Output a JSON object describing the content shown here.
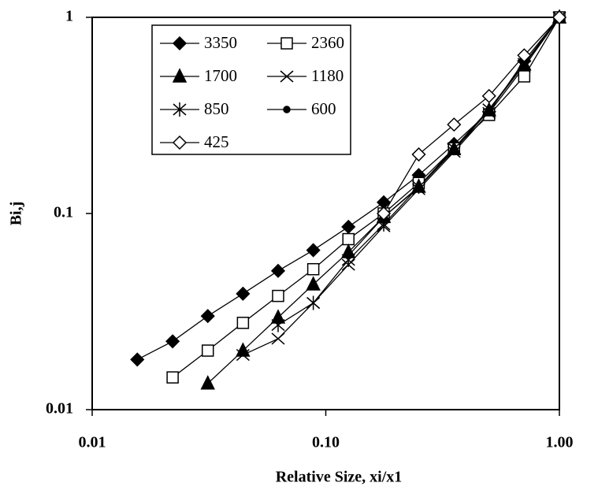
{
  "chart_data": {
    "type": "line",
    "x_label": "Relative Size, xi/x1",
    "y_label": "Bi,j",
    "x": [
      0.0156,
      0.0221,
      0.03125,
      0.0442,
      0.0625,
      0.0884,
      0.125,
      0.177,
      0.25,
      0.354,
      0.5,
      0.707,
      1
    ],
    "x_scale": "log",
    "y_scale": "log",
    "xlim": [
      0.01,
      1
    ],
    "ylim": [
      0.01,
      1
    ],
    "xticks": [
      {
        "value": 0.01,
        "label": "0.01"
      },
      {
        "value": 0.1,
        "label": "0.10"
      },
      {
        "value": 1,
        "label": "1.00"
      }
    ],
    "yticks": [
      0.01,
      0.1,
      1
    ],
    "legend": "upper left",
    "series": [
      {
        "name": "3350",
        "color": "#000000",
        "marker": "diamond",
        "filled": true,
        "values": [
          0.018,
          0.0223,
          0.03,
          0.039,
          0.051,
          0.065,
          0.0855,
          0.114,
          0.157,
          0.226,
          0.33,
          0.6,
          1
        ]
      },
      {
        "name": "2360",
        "color": "#000000",
        "marker": "square",
        "filled": false,
        "values": [
          null,
          0.0146,
          0.02,
          0.0277,
          0.038,
          0.052,
          0.074,
          0.1,
          0.143,
          0.215,
          0.318,
          0.5,
          1
        ]
      },
      {
        "name": "1700",
        "color": "#000000",
        "marker": "triangle",
        "filled": true,
        "values": [
          null,
          null,
          0.0136,
          0.02,
          0.0295,
          0.0435,
          0.0636,
          0.096,
          0.137,
          0.213,
          0.336,
          0.575,
          1
        ]
      },
      {
        "name": "1180",
        "color": "#000000",
        "marker": "x",
        "filled": false,
        "values": [
          null,
          null,
          null,
          0.019,
          0.023,
          0.035,
          0.0548,
          0.086,
          0.133,
          0.206,
          0.326,
          0.56,
          1
        ]
      },
      {
        "name": "850",
        "color": "#000000",
        "marker": "asterisk",
        "filled": false,
        "values": [
          null,
          null,
          null,
          null,
          0.027,
          0.035,
          0.058,
          0.088,
          0.137,
          0.215,
          0.34,
          0.58,
          1
        ]
      },
      {
        "name": "600",
        "color": "#000000",
        "marker": "dot",
        "filled": true,
        "values": [
          null,
          null,
          null,
          null,
          null,
          null,
          0.061,
          0.096,
          0.136,
          0.21,
          0.336,
          0.58,
          1
        ]
      },
      {
        "name": "425",
        "color": "#000000",
        "marker": "diamond",
        "filled": false,
        "values": [
          null,
          null,
          null,
          null,
          null,
          null,
          null,
          0.1,
          0.2,
          0.284,
          0.397,
          0.64,
          1
        ]
      }
    ]
  }
}
